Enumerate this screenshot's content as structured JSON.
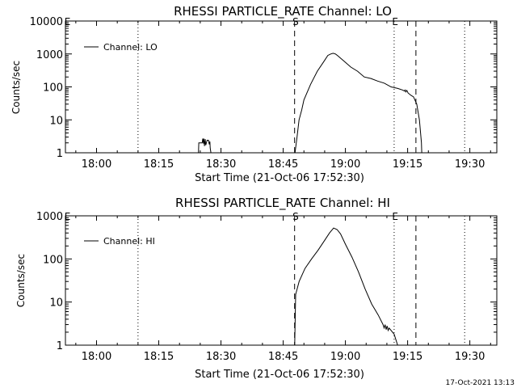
{
  "footer": {
    "timestamp": "17-Oct-2021 13:13"
  },
  "chart_data": [
    {
      "type": "line",
      "title": "RHESSI PARTICLE_RATE Channel: LO",
      "xlabel": "Start Time (21-Oct-06 17:52:30)",
      "ylabel": "Counts/sec",
      "y_scale": "log",
      "xlim": [
        "17:52:30",
        "19:36:30"
      ],
      "ylim": [
        1,
        10000
      ],
      "x_ticks": [
        "18:00",
        "18:15",
        "18:30",
        "18:45",
        "19:00",
        "19:15",
        "19:30"
      ],
      "y_ticks": [
        "1",
        "10",
        "100",
        "1000",
        "10000"
      ],
      "grid": false,
      "legend": "top-left",
      "series": [
        {
          "name": "Channel: LO",
          "x": [
            "18:24:34",
            "18:24:39",
            "18:25:28",
            "18:25:37",
            "18:25:47",
            "18:25:52",
            "18:26:01",
            "18:26:11",
            "18:26:20",
            "18:26:40",
            "18:27:00",
            "18:27:10",
            "18:27:19",
            "18:27:24",
            "18:27:34",
            "18:47:51",
            "18:48:20",
            "18:48:49",
            "18:49:28",
            "18:50:00",
            "18:51:37",
            "18:53:14",
            "18:54:51",
            "18:55:45",
            "18:56:28",
            "18:57:03",
            "18:57:36",
            "18:58:05",
            "18:59:42",
            "19:01:19",
            "19:02:56",
            "19:04:32",
            "19:06:09",
            "19:07:46",
            "19:09:23",
            "19:11:00",
            "19:12:37",
            "19:13:49",
            "19:14:14",
            "19:14:24",
            "19:14:33",
            "19:14:48",
            "19:15:07",
            "19:15:51",
            "19:16:25",
            "19:17:12",
            "19:17:51",
            "19:18:20",
            "19:18:25"
          ],
          "y": [
            1,
            2,
            2,
            2.7,
            1.9,
            2.7,
            1.6,
            2.6,
            1.7,
            2.4,
            2.4,
            1.8,
            2.2,
            1.4,
            1,
            1,
            3,
            10,
            20,
            40,
            120,
            300,
            600,
            900,
            1000,
            1050,
            1000,
            900,
            600,
            400,
            300,
            200,
            180,
            150,
            130,
            100,
            90,
            80,
            75,
            80,
            70,
            78,
            65,
            55,
            50,
            30,
            10,
            2,
            1
          ]
        }
      ],
      "vlines": [
        {
          "x": "18:10:00",
          "style": "dotted"
        },
        {
          "x": "18:47:45",
          "style": "dashed"
        },
        {
          "x": "19:11:45",
          "style": "dotted"
        },
        {
          "x": "19:17:00",
          "style": "dashed"
        },
        {
          "x": "19:28:45",
          "style": "dotted"
        }
      ],
      "markers": [
        {
          "x": "17:53:00",
          "label": "E"
        },
        {
          "x": "18:48:00",
          "label": "S"
        },
        {
          "x": "19:12:00",
          "label": "E"
        }
      ]
    },
    {
      "type": "line",
      "title": "RHESSI PARTICLE_RATE Channel: HI",
      "xlabel": "Start Time (21-Oct-06 17:52:30)",
      "ylabel": "Counts/sec",
      "y_scale": "log",
      "xlim": [
        "17:52:30",
        "19:36:30"
      ],
      "ylim": [
        1,
        1000
      ],
      "x_ticks": [
        "18:00",
        "18:15",
        "18:30",
        "18:45",
        "19:00",
        "19:15",
        "19:30"
      ],
      "y_ticks": [
        "1",
        "10",
        "100",
        "1000"
      ],
      "grid": false,
      "legend": "top-left",
      "series": [
        {
          "name": "Channel: HI",
          "x": [
            "18:47:46",
            "18:48:00",
            "18:48:50",
            "18:50:15",
            "18:51:50",
            "18:53:25",
            "18:55:00",
            "18:56:10",
            "18:57:10",
            "18:58:00",
            "18:58:50",
            "19:00:00",
            "19:01:35",
            "19:03:10",
            "19:04:45",
            "19:06:20",
            "19:07:55",
            "19:09:05",
            "19:09:20",
            "19:09:34",
            "19:09:49",
            "19:10:03",
            "19:10:18",
            "19:10:32",
            "19:11:45",
            "19:12:20",
            "19:12:35"
          ],
          "y": [
            1,
            15,
            30,
            60,
            100,
            160,
            270,
            400,
            520,
            480,
            380,
            220,
            110,
            50,
            20,
            9,
            5,
            3,
            2.5,
            3,
            2.3,
            2.8,
            2.2,
            2.5,
            1.8,
            1.2,
            1
          ]
        }
      ],
      "vlines": [
        {
          "x": "18:10:00",
          "style": "dotted"
        },
        {
          "x": "18:47:45",
          "style": "dashed"
        },
        {
          "x": "19:11:45",
          "style": "dotted"
        },
        {
          "x": "19:17:00",
          "style": "dashed"
        },
        {
          "x": "19:28:45",
          "style": "dotted"
        }
      ],
      "markers": [
        {
          "x": "17:53:00",
          "label": "E"
        },
        {
          "x": "18:48:00",
          "label": "S"
        },
        {
          "x": "19:12:00",
          "label": "E"
        }
      ]
    }
  ]
}
